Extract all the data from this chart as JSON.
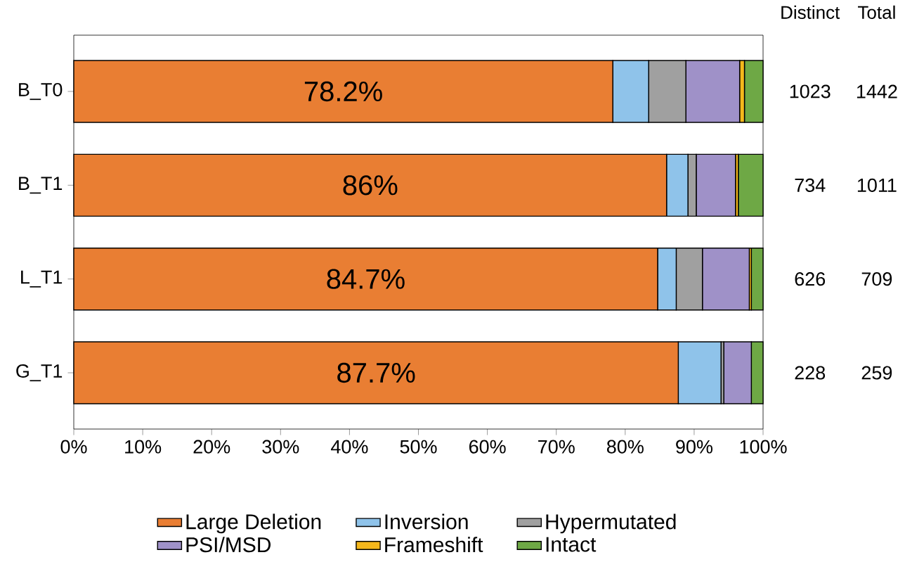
{
  "chart_data": {
    "type": "bar",
    "orientation": "horizontal",
    "stacked": true,
    "categories": [
      "B_T0",
      "B_T1",
      "L_T1",
      "G_T1"
    ],
    "series": [
      {
        "name": "Large Deletion",
        "color": "#e97e33",
        "values": [
          78.2,
          86,
          84.7,
          87.7
        ],
        "value_labels": [
          "78.2%",
          "86%",
          "84.7%",
          "87.7%"
        ]
      },
      {
        "name": "Inversion",
        "color": "#8fc3ea",
        "values": [
          5.2,
          3.1,
          2.7,
          6.2
        ]
      },
      {
        "name": "Hypermutated",
        "color": "#a0a0a0",
        "values": [
          5.4,
          1.2,
          3.8,
          0.4
        ]
      },
      {
        "name": "PSI/MSD",
        "color": "#9f91c8",
        "values": [
          7.8,
          5.7,
          6.8,
          4.0
        ]
      },
      {
        "name": "Frameshift",
        "color": "#f5b81c",
        "values": [
          0.7,
          0.4,
          0.3,
          0
        ]
      },
      {
        "name": "Intact",
        "color": "#6ea845",
        "values": [
          2.7,
          3.6,
          1.7,
          1.7
        ]
      }
    ],
    "xlim": [
      0,
      100
    ],
    "xticks": [
      {
        "value": 0,
        "label": "0%"
      },
      {
        "value": 10,
        "label": "10%"
      },
      {
        "value": 20,
        "label": "20%"
      },
      {
        "value": 30,
        "label": "30%"
      },
      {
        "value": 40,
        "label": "40%"
      },
      {
        "value": 50,
        "label": "50%"
      },
      {
        "value": 60,
        "label": "60%"
      },
      {
        "value": 70,
        "label": "70%"
      },
      {
        "value": 80,
        "label": "80%"
      },
      {
        "value": 90,
        "label": "90%"
      },
      {
        "value": 100,
        "label": "100%"
      }
    ],
    "grid": false,
    "legend": "bottom",
    "annotations": [
      "Distinct",
      "Total",
      "1023",
      "1442",
      "734",
      "1011",
      "626",
      "709",
      "228",
      "259"
    ]
  }
}
